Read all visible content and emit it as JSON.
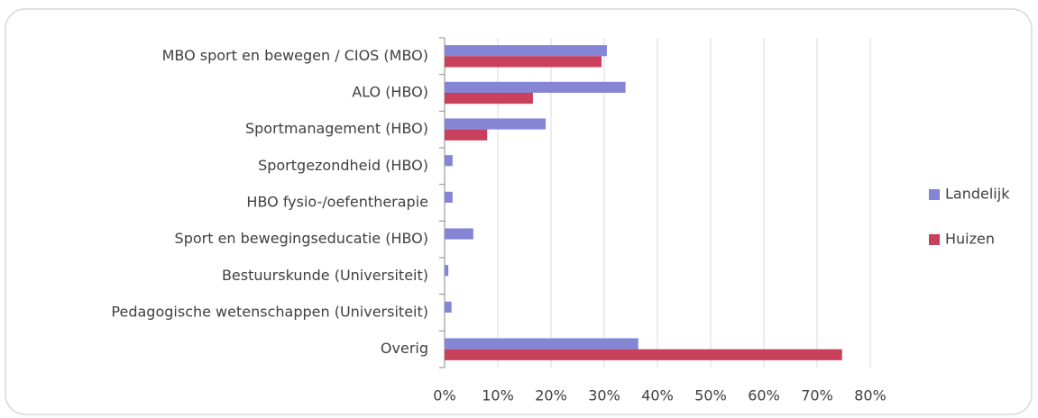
{
  "chart_data": {
    "type": "hbar",
    "categories": [
      "MBO sport en bewegen / CIOS (MBO)",
      "ALO (HBO)",
      "Sportmanagement (HBO)",
      "Sportgezondheid (HBO)",
      "HBO fysio-/oefentherapie",
      "Sport en bewegingseducatie (HBO)",
      "Bestuurskunde (Universiteit)",
      "Pedagogische wetenschappen (Universiteit)",
      "Overig"
    ],
    "series": [
      {
        "name": "Landelijk",
        "color": "#8585d6",
        "values": [
          30.5,
          34,
          19,
          1.5,
          1.5,
          5.4,
          0.7,
          1.3,
          36.4
        ]
      },
      {
        "name": "Huizen",
        "color": "#c9405c",
        "values": [
          29.5,
          16.6,
          8,
          0,
          0,
          0,
          0,
          0,
          74.7
        ]
      }
    ],
    "xlim": [
      0,
      80
    ],
    "xticks": [
      {
        "value": 0,
        "label": "0%"
      },
      {
        "value": 10,
        "label": "10%"
      },
      {
        "value": 20,
        "label": "20%"
      },
      {
        "value": 30,
        "label": "30%"
      },
      {
        "value": 40,
        "label": "40%"
      },
      {
        "value": 50,
        "label": "50%"
      },
      {
        "value": 60,
        "label": "60%"
      },
      {
        "value": 70,
        "label": "70%"
      },
      {
        "value": 80,
        "label": "80%"
      }
    ],
    "grid": true,
    "legend": "right"
  }
}
